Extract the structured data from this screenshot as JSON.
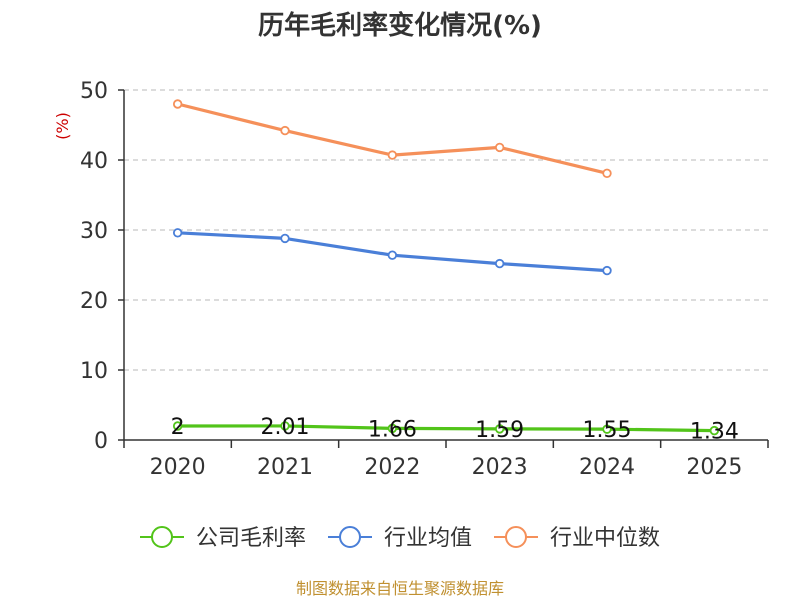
{
  "chart_data": {
    "type": "line",
    "title": "历年毛利率变化情况(%)",
    "ylabel": "(%)",
    "xlabel": "",
    "categories": [
      "2020",
      "2021",
      "2022",
      "2023",
      "2024",
      "2025"
    ],
    "ylim": [
      0,
      50
    ],
    "yticks": [
      0,
      10,
      20,
      30,
      40,
      50
    ],
    "grid": true,
    "legend_position": "bottom",
    "series": [
      {
        "name": "公司毛利率",
        "color": "#52c41a",
        "values": [
          2,
          2.01,
          1.66,
          1.59,
          1.55,
          1.34
        ],
        "labels": [
          "2",
          "2.01",
          "1.66",
          "1.59",
          "1.55",
          "1.34"
        ]
      },
      {
        "name": "行业均值",
        "color": "#4a7fd8",
        "values": [
          29.6,
          28.8,
          26.4,
          25.2,
          24.2,
          null
        ]
      },
      {
        "name": "行业中位数",
        "color": "#f5905a",
        "values": [
          48,
          44.2,
          40.7,
          41.8,
          38.1,
          null
        ]
      }
    ],
    "source": "制图数据来自恒生聚源数据库"
  }
}
